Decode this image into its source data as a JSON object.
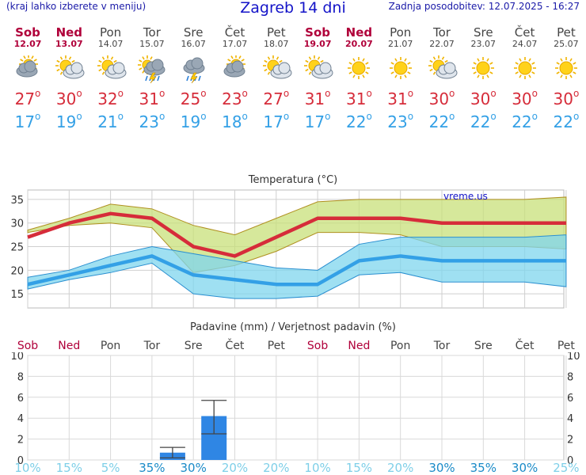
{
  "header": {
    "hint": "(kraj lahko izberete v meniju)",
    "title": "Zagreb 14 dni",
    "updated": "Zadnja posodobitev: 12.07.2025 - 16:27"
  },
  "days": [
    {
      "name": "Sob",
      "date": "12.07",
      "weekend": true,
      "icon": "partly-cloudy-icon",
      "tmax": "27",
      "tmin": "17"
    },
    {
      "name": "Ned",
      "date": "13.07",
      "weekend": true,
      "icon": "sun-cloud-icon",
      "tmax": "30",
      "tmin": "19"
    },
    {
      "name": "Pon",
      "date": "14.07",
      "weekend": false,
      "icon": "sun-cloud-icon",
      "tmax": "32",
      "tmin": "21"
    },
    {
      "name": "Tor",
      "date": "15.07",
      "weekend": false,
      "icon": "sun-thunder-rain-icon",
      "tmax": "31",
      "tmin": "23"
    },
    {
      "name": "Sre",
      "date": "16.07",
      "weekend": false,
      "icon": "thunder-rain-icon",
      "tmax": "25",
      "tmin": "19"
    },
    {
      "name": "Čet",
      "date": "17.07",
      "weekend": false,
      "icon": "partly-cloudy-icon",
      "tmax": "23",
      "tmin": "18"
    },
    {
      "name": "Pet",
      "date": "18.07",
      "weekend": false,
      "icon": "sun-cloud-icon",
      "tmax": "27",
      "tmin": "17"
    },
    {
      "name": "Sob",
      "date": "19.07",
      "weekend": true,
      "icon": "sun-cloud-icon",
      "tmax": "31",
      "tmin": "17"
    },
    {
      "name": "Ned",
      "date": "20.07",
      "weekend": true,
      "icon": "sun-icon",
      "tmax": "31",
      "tmin": "22"
    },
    {
      "name": "Pon",
      "date": "21.07",
      "weekend": false,
      "icon": "sun-icon",
      "tmax": "31",
      "tmin": "23"
    },
    {
      "name": "Tor",
      "date": "22.07",
      "weekend": false,
      "icon": "sun-cloud-icon",
      "tmax": "30",
      "tmin": "22"
    },
    {
      "name": "Sre",
      "date": "23.07",
      "weekend": false,
      "icon": "sun-icon",
      "tmax": "30",
      "tmin": "22"
    },
    {
      "name": "Čet",
      "date": "24.07",
      "weekend": false,
      "icon": "sun-icon",
      "tmax": "30",
      "tmin": "22"
    },
    {
      "name": "Pet",
      "date": "25.07",
      "weekend": false,
      "icon": "sun-icon",
      "tmax": "30",
      "tmin": "22"
    }
  ],
  "chart_data": [
    {
      "type": "line",
      "title": "Temperatura (°C)",
      "watermark": "vreme.us",
      "x": [
        "12.07",
        "13.07",
        "14.07",
        "15.07",
        "16.07",
        "17.07",
        "18.07",
        "19.07",
        "20.07",
        "21.07",
        "22.07",
        "23.07",
        "24.07",
        "25.07"
      ],
      "ylim": [
        12,
        37
      ],
      "yticks": [
        15,
        20,
        25,
        30,
        35
      ],
      "series": [
        {
          "values": [
            27,
            30,
            32,
            31,
            25,
            23,
            27,
            31,
            31,
            31,
            30,
            30,
            30,
            30
          ],
          "color": "#d62c3a"
        },
        {
          "values": [
            17,
            19,
            21,
            23,
            19,
            18,
            17,
            17,
            22,
            23,
            22,
            22,
            22,
            22
          ],
          "color": "#33a0e6"
        },
        {
          "values": [
            28.5,
            31,
            34,
            33,
            29.5,
            27.5,
            31,
            34.5,
            35,
            35,
            35,
            35,
            35,
            35.5
          ],
          "color": "#c9b400"
        },
        {
          "values": [
            28,
            29.5,
            30,
            29,
            19.5,
            21,
            24,
            28,
            28,
            27.5,
            25,
            25,
            25,
            24.5
          ],
          "color": "#c9b400"
        },
        {
          "values": [
            18.5,
            20,
            23,
            25,
            23.5,
            22,
            20.5,
            20,
            25.5,
            27,
            27,
            27,
            27,
            27.5
          ],
          "color": "#33a0e6"
        },
        {
          "values": [
            16,
            18,
            19.5,
            21.5,
            15,
            14,
            14,
            14.5,
            19,
            19.5,
            17.5,
            17.5,
            17.5,
            16.5
          ],
          "color": "#33a0e6"
        }
      ],
      "grid": true
    },
    {
      "type": "bar",
      "title": "Padavine (mm) / Verjetnost padavin (%)",
      "categories": [
        "Sob",
        "Ned",
        "Pon",
        "Tor",
        "Sre",
        "Čet",
        "Pet",
        "Sob",
        "Ned",
        "Pon",
        "Tor",
        "Sre",
        "Čet",
        "Pet"
      ],
      "weekend": [
        true,
        true,
        false,
        false,
        false,
        false,
        false,
        true,
        true,
        false,
        false,
        false,
        false,
        false
      ],
      "values": [
        0,
        0,
        0,
        0.7,
        4.2,
        0,
        0,
        0,
        0,
        0,
        0,
        0,
        0,
        0
      ],
      "error_low": [
        null,
        null,
        null,
        0.2,
        2.5,
        null,
        null,
        null,
        null,
        null,
        null,
        null,
        null,
        null
      ],
      "error_high": [
        null,
        null,
        null,
        1.2,
        5.7,
        null,
        null,
        null,
        null,
        null,
        null,
        null,
        null,
        null
      ],
      "probability": [
        "10%",
        "15%",
        "5%",
        "35%",
        "30%",
        "20%",
        "20%",
        "10%",
        "15%",
        "20%",
        "30%",
        "35%",
        "30%",
        "25%"
      ],
      "probability_values": [
        10,
        15,
        5,
        35,
        30,
        20,
        20,
        10,
        15,
        20,
        30,
        35,
        30,
        25
      ],
      "ylim": [
        0,
        10
      ],
      "yticks": [
        0,
        2,
        4,
        6,
        8,
        10
      ],
      "bar_color": "#2f86e4",
      "grid": true
    }
  ]
}
